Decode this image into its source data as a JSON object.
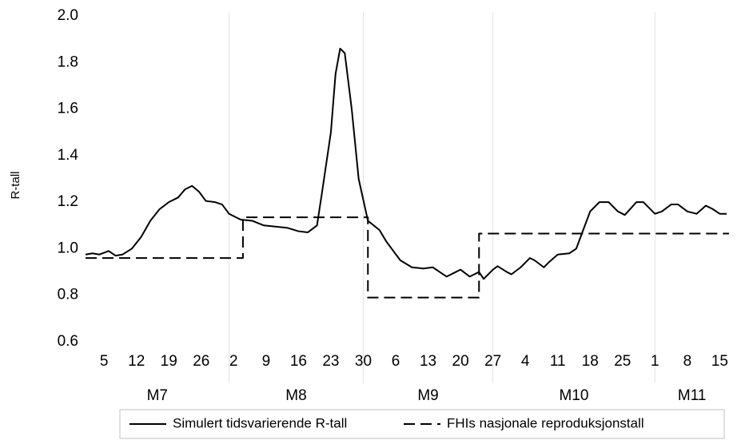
{
  "chart_data": {
    "type": "line",
    "y_label": "R-tall",
    "xlim": [
      0,
      139
    ],
    "ylim": [
      0.6,
      2.0
    ],
    "yticks": [
      0.6,
      {
        "value": 0.8,
        "label": "0.8"
      },
      {
        "value": 1.0,
        "label": "1.0"
      },
      1.2,
      1.4,
      1.6,
      1.8,
      {
        "value": 2.0,
        "label": "2.0"
      }
    ],
    "xticks": [
      {
        "value": 4,
        "label": "5"
      },
      {
        "value": 11,
        "label": "12"
      },
      {
        "value": 18,
        "label": "19"
      },
      {
        "value": 25,
        "label": "26"
      },
      {
        "value": 32,
        "label": "2"
      },
      {
        "value": 39,
        "label": "9"
      },
      {
        "value": 46,
        "label": "16"
      },
      {
        "value": 53,
        "label": "23"
      },
      {
        "value": 60,
        "label": "30"
      },
      {
        "value": 67,
        "label": "6"
      },
      {
        "value": 74,
        "label": "13"
      },
      {
        "value": 81,
        "label": "20"
      },
      {
        "value": 88,
        "label": "27"
      },
      {
        "value": 95,
        "label": "4"
      },
      {
        "value": 102,
        "label": "11"
      },
      {
        "value": 109,
        "label": "18"
      },
      {
        "value": 116,
        "label": "25"
      },
      {
        "value": 123,
        "label": "1"
      },
      {
        "value": 130,
        "label": "8"
      },
      {
        "value": 137,
        "label": "15"
      }
    ],
    "xgrid": [
      31,
      60,
      88,
      123
    ],
    "month_labels": [
      "M7",
      "M8",
      "M9",
      "M10",
      "M11"
    ],
    "grid": true,
    "legend": "bottom",
    "series": [
      {
        "name": "Simulert tidsvarierende R-tall",
        "color": "#000000",
        "dash": "solid",
        "x": [
          0,
          1.5,
          3,
          5,
          6.5,
          8,
          10,
          12,
          14,
          16,
          18,
          20,
          21.5,
          23,
          24.5,
          26,
          28,
          29.5,
          31,
          33.5,
          36,
          38.5,
          41,
          43.5,
          46,
          48,
          50,
          51,
          53,
          54,
          55,
          56,
          57.5,
          59,
          61,
          63.5,
          65,
          68,
          70.5,
          73,
          75,
          76.5,
          78,
          80,
          81,
          83,
          85,
          86,
          88,
          89,
          91,
          92,
          94,
          96,
          97,
          99,
          100,
          102,
          104.5,
          106,
          107.5,
          109,
          111,
          113,
          115,
          116.5,
          119,
          120.5,
          123,
          124.5,
          126.5,
          128,
          130,
          132,
          134,
          135.5,
          137,
          138.5
        ],
        "values": [
          0.975,
          0.98,
          0.975,
          0.99,
          0.97,
          0.975,
          1.0,
          1.05,
          1.12,
          1.17,
          1.2,
          1.22,
          1.255,
          1.27,
          1.245,
          1.205,
          1.2,
          1.19,
          1.15,
          1.125,
          1.12,
          1.1,
          1.095,
          1.09,
          1.075,
          1.07,
          1.1,
          1.23,
          1.5,
          1.75,
          1.86,
          1.84,
          1.6,
          1.3,
          1.12,
          1.08,
          1.03,
          0.95,
          0.92,
          0.915,
          0.92,
          0.9,
          0.88,
          0.9,
          0.91,
          0.88,
          0.9,
          0.87,
          0.91,
          0.925,
          0.9,
          0.89,
          0.92,
          0.96,
          0.95,
          0.92,
          0.94,
          0.975,
          0.98,
          1.0,
          1.08,
          1.16,
          1.2,
          1.2,
          1.16,
          1.145,
          1.2,
          1.2,
          1.15,
          1.16,
          1.19,
          1.19,
          1.16,
          1.15,
          1.185,
          1.17,
          1.15,
          1.15
        ]
      },
      {
        "name": "FHIs nasjonale reproduksjonstall",
        "color": "#000000",
        "dash": "dashed",
        "x": [
          0,
          34,
          34,
          61,
          61,
          85,
          85,
          139
        ],
        "values": [
          0.96,
          0.96,
          1.135,
          1.135,
          0.79,
          0.79,
          1.065,
          1.065
        ]
      }
    ]
  }
}
